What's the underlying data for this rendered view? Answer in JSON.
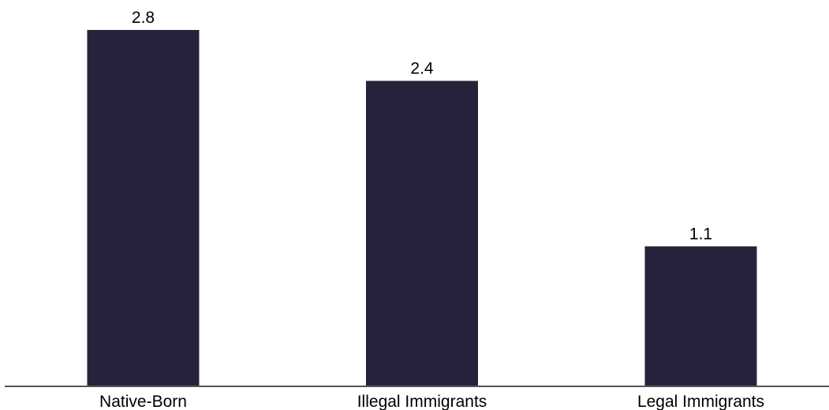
{
  "chart_data": {
    "type": "bar",
    "categories": [
      "Native-Born",
      "Illegal Immigrants",
      "Legal Immigrants"
    ],
    "values": [
      2.8,
      2.4,
      1.1
    ],
    "value_labels": [
      "2.8",
      "2.4",
      "1.1"
    ],
    "title": "",
    "xlabel": "",
    "ylabel": "",
    "ylim": [
      0,
      2.8
    ],
    "grid": false,
    "legend": "none",
    "bar_color": "#27223c",
    "axis_color": "#555555"
  }
}
